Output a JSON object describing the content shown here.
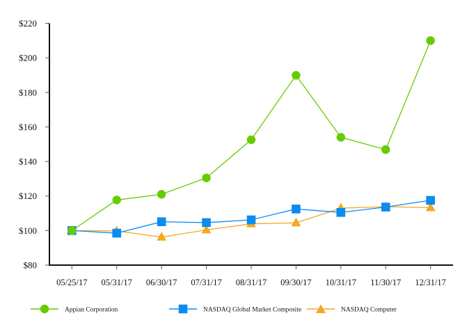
{
  "chart_data": {
    "type": "line",
    "title": "",
    "xlabel": "",
    "ylabel": "",
    "ylim": [
      80,
      220
    ],
    "yticks": [
      80,
      100,
      120,
      140,
      160,
      180,
      200,
      220
    ],
    "ytick_labels": [
      "$80",
      "$100",
      "$120",
      "$140",
      "$160",
      "$180",
      "$200",
      "$220"
    ],
    "grid": false,
    "legend_position": "bottom",
    "categories": [
      "05/25/17",
      "05/31/17",
      "06/30/17",
      "07/31/17",
      "08/31/17",
      "09/30/17",
      "10/31/17",
      "11/30/17",
      "12/31/17"
    ],
    "series": [
      {
        "name": "Appian Corporation",
        "color": "#66CC00",
        "marker": "circle",
        "values": [
          100.0,
          117.7,
          121.0,
          130.5,
          152.6,
          189.9,
          154.0,
          146.9,
          210.0
        ]
      },
      {
        "name": "NASDAQ Global Market Composite",
        "color": "#0A8CF0",
        "marker": "square",
        "values": [
          100.0,
          98.5,
          105.1,
          104.6,
          106.2,
          112.5,
          110.5,
          113.6,
          117.5
        ]
      },
      {
        "name": "NASDAQ Computer",
        "color": "#F5A623",
        "marker": "triangle",
        "values": [
          100.0,
          99.8,
          96.2,
          100.4,
          103.9,
          104.5,
          113.0,
          113.8,
          113.3
        ]
      }
    ]
  }
}
